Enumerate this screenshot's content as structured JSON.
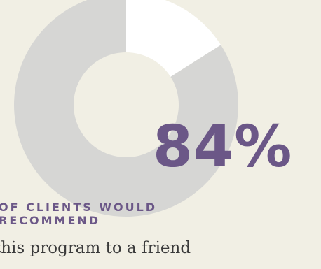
{
  "colors": {
    "background": "#f1efe4",
    "ring": "#d6d6d4",
    "highlight": "#ffffff",
    "accent": "#6b5787",
    "body_text": "#3a3a3a"
  },
  "stat": {
    "value": "84%",
    "caption": "OF CLIENTS WOULD RECOMMEND",
    "subtext": "this program to a friend"
  },
  "chart_data": {
    "type": "pie",
    "variant": "donut",
    "slices": [
      {
        "value": 84,
        "color": "#d6d6d4"
      },
      {
        "value": 16,
        "color": "#ffffff"
      }
    ]
  }
}
